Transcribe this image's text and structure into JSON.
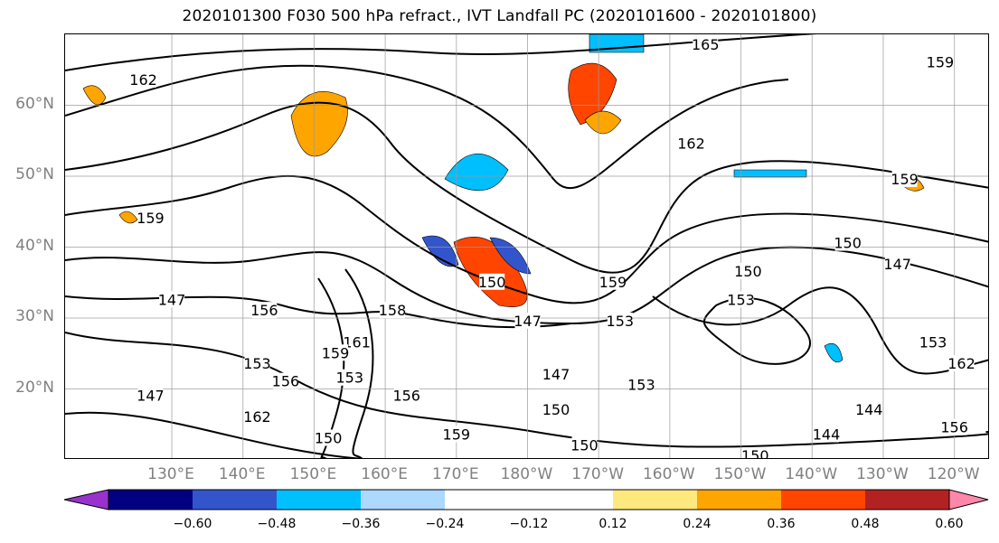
{
  "title": "2020101300 F030 500 hPa refract., IVT Landfall PC (2020101600 - 2020101800)",
  "map": {
    "projection": "cylindrical",
    "lon_range": [
      115,
      245
    ],
    "lat_range": [
      10,
      70
    ],
    "grid": true,
    "background": "#ffffff",
    "contour_color": "#000000"
  },
  "lat_ticks": [
    {
      "value": 60,
      "label": "60°N"
    },
    {
      "value": 50,
      "label": "50°N"
    },
    {
      "value": 40,
      "label": "40°N"
    },
    {
      "value": 30,
      "label": "30°N"
    },
    {
      "value": 20,
      "label": "20°N"
    }
  ],
  "lon_ticks": [
    {
      "value": 130,
      "label": "130°E"
    },
    {
      "value": 140,
      "label": "140°E"
    },
    {
      "value": 150,
      "label": "150°E"
    },
    {
      "value": 160,
      "label": "160°E"
    },
    {
      "value": 170,
      "label": "170°E"
    },
    {
      "value": 180,
      "label": "180°W"
    },
    {
      "value": 190,
      "label": "170°W"
    },
    {
      "value": 200,
      "label": "160°W"
    },
    {
      "value": 210,
      "label": "150°W"
    },
    {
      "value": 220,
      "label": "140°W"
    },
    {
      "value": 230,
      "label": "130°W"
    },
    {
      "value": 240,
      "label": "120°W"
    }
  ],
  "contour_labels": [
    {
      "text": "162",
      "lon": 126,
      "lat": 63.5
    },
    {
      "text": "165",
      "lon": 205,
      "lat": 68.5
    },
    {
      "text": "159",
      "lon": 238,
      "lat": 66
    },
    {
      "text": "162",
      "lon": 203,
      "lat": 54.5
    },
    {
      "text": "159",
      "lon": 233,
      "lat": 49.5
    },
    {
      "text": "159",
      "lon": 127,
      "lat": 44
    },
    {
      "text": "150",
      "lon": 225,
      "lat": 40.5
    },
    {
      "text": "147",
      "lon": 232,
      "lat": 37.5
    },
    {
      "text": "150",
      "lon": 211,
      "lat": 36.5
    },
    {
      "text": "153",
      "lon": 210,
      "lat": 32.5
    },
    {
      "text": "150",
      "lon": 175,
      "lat": 35
    },
    {
      "text": "159",
      "lon": 192,
      "lat": 35
    },
    {
      "text": "147",
      "lon": 130,
      "lat": 32.5
    },
    {
      "text": "156",
      "lon": 143,
      "lat": 31
    },
    {
      "text": "158",
      "lon": 161,
      "lat": 31
    },
    {
      "text": "147",
      "lon": 180,
      "lat": 29.5
    },
    {
      "text": "153",
      "lon": 193,
      "lat": 29.5
    },
    {
      "text": "161",
      "lon": 156,
      "lat": 26.5
    },
    {
      "text": "159",
      "lon": 153,
      "lat": 25
    },
    {
      "text": "153",
      "lon": 142,
      "lat": 23.5
    },
    {
      "text": "153",
      "lon": 155,
      "lat": 21.5
    },
    {
      "text": "156",
      "lon": 146,
      "lat": 21
    },
    {
      "text": "147",
      "lon": 184,
      "lat": 22
    },
    {
      "text": "153",
      "lon": 196,
      "lat": 20.5
    },
    {
      "text": "156",
      "lon": 163,
      "lat": 19
    },
    {
      "text": "147",
      "lon": 127,
      "lat": 19
    },
    {
      "text": "150",
      "lon": 184,
      "lat": 17
    },
    {
      "text": "144",
      "lon": 228,
      "lat": 17
    },
    {
      "text": "162",
      "lon": 142,
      "lat": 16
    },
    {
      "text": "159",
      "lon": 170,
      "lat": 13.5
    },
    {
      "text": "150",
      "lon": 152,
      "lat": 13
    },
    {
      "text": "150",
      "lon": 188,
      "lat": 12
    },
    {
      "text": "144",
      "lon": 222,
      "lat": 13.5
    },
    {
      "text": "150",
      "lon": 212,
      "lat": 10.5
    },
    {
      "text": "156",
      "lon": 240,
      "lat": 14.5
    },
    {
      "text": "162",
      "lon": 241,
      "lat": 23.5
    },
    {
      "text": "153",
      "lon": 237,
      "lat": 26.5
    }
  ],
  "colorbar": {
    "type": "colorbar",
    "colors": [
      "#9932cc",
      "#000080",
      "#3355cc",
      "#00bfff",
      "#add8ff",
      "#ffffff",
      "#ffffff",
      "#ffe97f",
      "#ffa500",
      "#ff4500",
      "#b22222",
      "#ff88aa"
    ],
    "extend": "both",
    "tick_values": [
      -0.6,
      -0.48,
      -0.36,
      -0.24,
      -0.12,
      0.12,
      0.24,
      0.36,
      0.48,
      0.6
    ],
    "tick_labels": [
      "−0.60",
      "−0.48",
      "−0.36",
      "−0.24",
      "−0.12",
      "0.12",
      "0.24",
      "0.36",
      "0.48",
      "0.60"
    ]
  }
}
